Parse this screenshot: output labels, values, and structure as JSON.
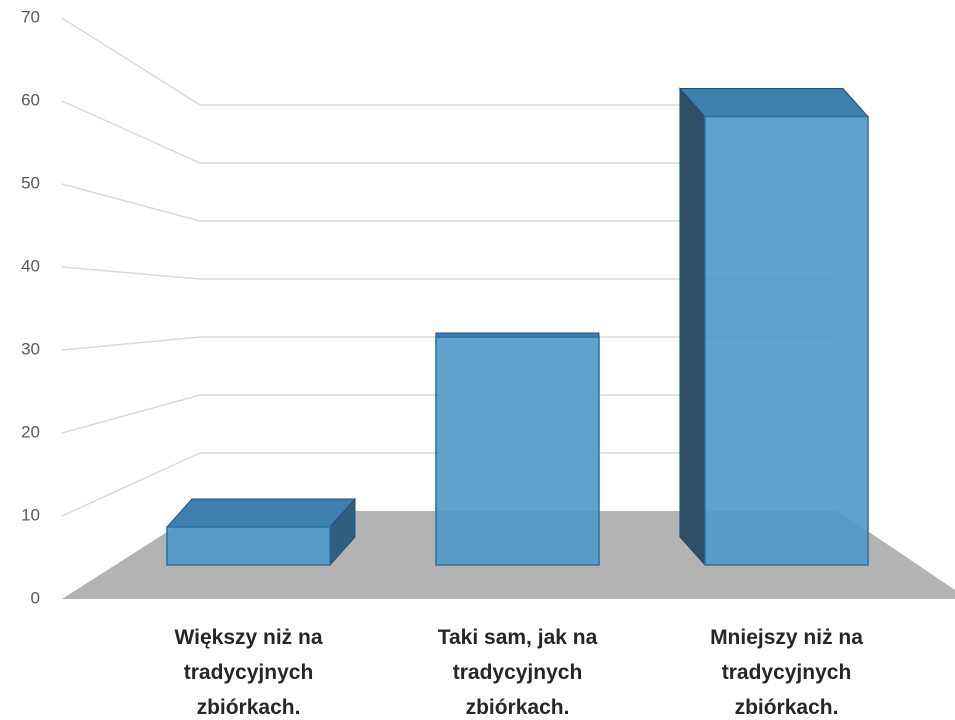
{
  "chart_data": {
    "type": "bar3d",
    "categories": [
      "Większy niż na tradycyjnych zbiórkach.",
      "Taki sam, jak na tradycyjnych zbiórkach.",
      "Mniejszy niż na tradycyjnych zbiórkach."
    ],
    "values": [
      5,
      30,
      59
    ],
    "color": "#4f97c9",
    "ylim": [
      0,
      70
    ],
    "yticks": [
      0,
      10,
      20,
      30,
      40,
      50,
      60,
      70
    ],
    "grid": true
  }
}
